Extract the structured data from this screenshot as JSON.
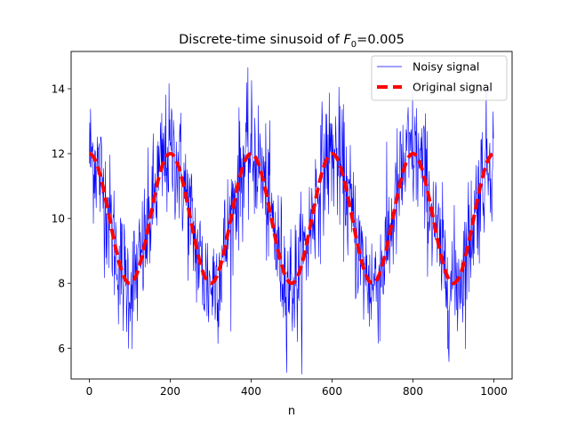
{
  "chart_data": {
    "type": "line",
    "title_prefix": "Discrete-time sinusoid of ",
    "title_var": "F",
    "title_sub": "0",
    "title_suffix": "=0.005",
    "xlabel": "n",
    "ylabel": "",
    "xlim": [
      -45,
      1045
    ],
    "ylim": [
      5.05,
      15.15
    ],
    "xticks": [
      0,
      200,
      400,
      600,
      800,
      1000
    ],
    "yticks": [
      6,
      8,
      10,
      12,
      14
    ],
    "grid": false,
    "legend_position": "top-right",
    "n_samples": 1000,
    "series": [
      {
        "name": "Noisy signal",
        "color": "#0000ff",
        "style": "solid-thin",
        "description_params": {
          "amplitude": 2,
          "offset": 10,
          "frequency": 0.005,
          "noise_std": 1
        }
      },
      {
        "name": "Original signal",
        "color": "#ff0000",
        "style": "dashed-thick",
        "params": {
          "amplitude": 2,
          "offset": 10,
          "frequency": 0.005
        }
      }
    ]
  }
}
